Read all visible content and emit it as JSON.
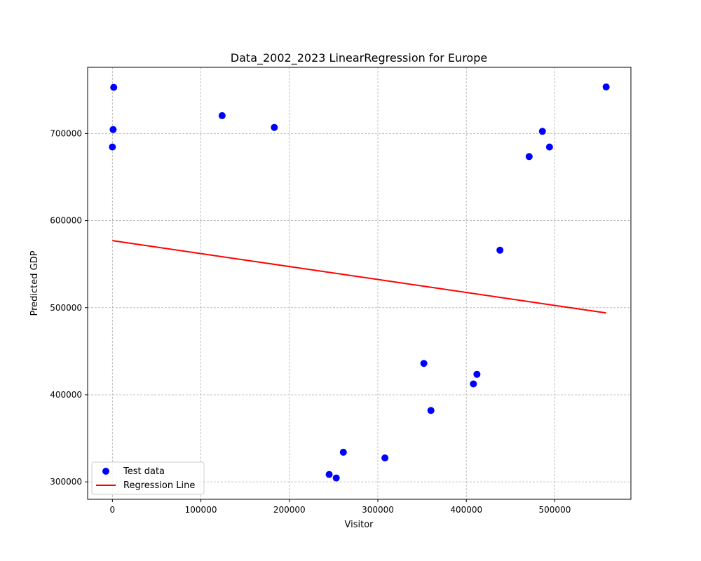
{
  "chart_data": {
    "type": "scatter",
    "title": "Data_2002_2023 LinearRegression for Europe",
    "xlabel": "Visitor",
    "ylabel": "Predicted GDP",
    "xlim": [
      -28000,
      586000
    ],
    "ylim": [
      280000,
      776000
    ],
    "xticks": [
      0,
      100000,
      200000,
      300000,
      400000,
      500000
    ],
    "xtick_labels": [
      "0",
      "100000",
      "200000",
      "300000",
      "400000",
      "500000"
    ],
    "yticks": [
      300000,
      400000,
      500000,
      600000,
      700000
    ],
    "ytick_labels": [
      "300000",
      "400000",
      "500000",
      "600000",
      "700000"
    ],
    "grid": true,
    "legend_position": "lower-left",
    "series": [
      {
        "name": "Test data",
        "kind": "scatter",
        "color": "#0000ff",
        "points": [
          [
            1500,
            753000
          ],
          [
            800,
            704500
          ],
          [
            0,
            684500
          ],
          [
            124000,
            720500
          ],
          [
            183000,
            707000
          ],
          [
            245000,
            308500
          ],
          [
            253000,
            304500
          ],
          [
            261000,
            334000
          ],
          [
            308000,
            327500
          ],
          [
            352000,
            436000
          ],
          [
            360000,
            382000
          ],
          [
            408000,
            412500
          ],
          [
            412000,
            423500
          ],
          [
            438000,
            566000
          ],
          [
            471000,
            673500
          ],
          [
            486000,
            702500
          ],
          [
            494000,
            684500
          ],
          [
            558000,
            753500
          ]
        ]
      },
      {
        "name": "Regression Line",
        "kind": "line",
        "color": "#ff0000",
        "points": [
          [
            0,
            577000
          ],
          [
            558000,
            494000
          ]
        ]
      }
    ]
  }
}
